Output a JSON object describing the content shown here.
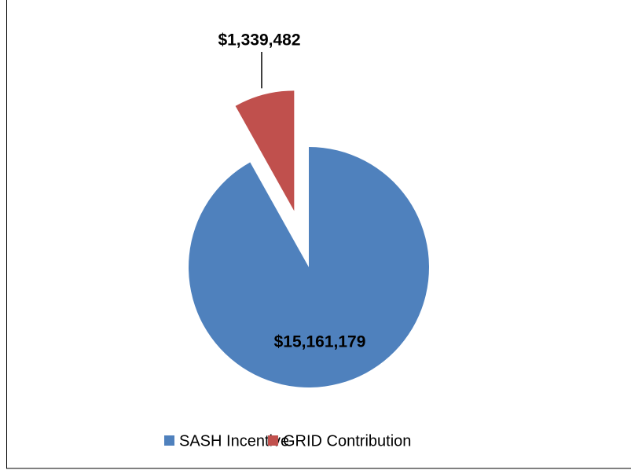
{
  "chart_data": {
    "type": "pie",
    "categories": [
      "SASH Incentive",
      "GRID Contribution"
    ],
    "values": [
      15161179,
      1339482
    ],
    "value_labels": [
      "$15,161,179",
      "$1,339,482"
    ],
    "colors": [
      "#4f81bd",
      "#c0504d"
    ],
    "legend": "bottom"
  }
}
